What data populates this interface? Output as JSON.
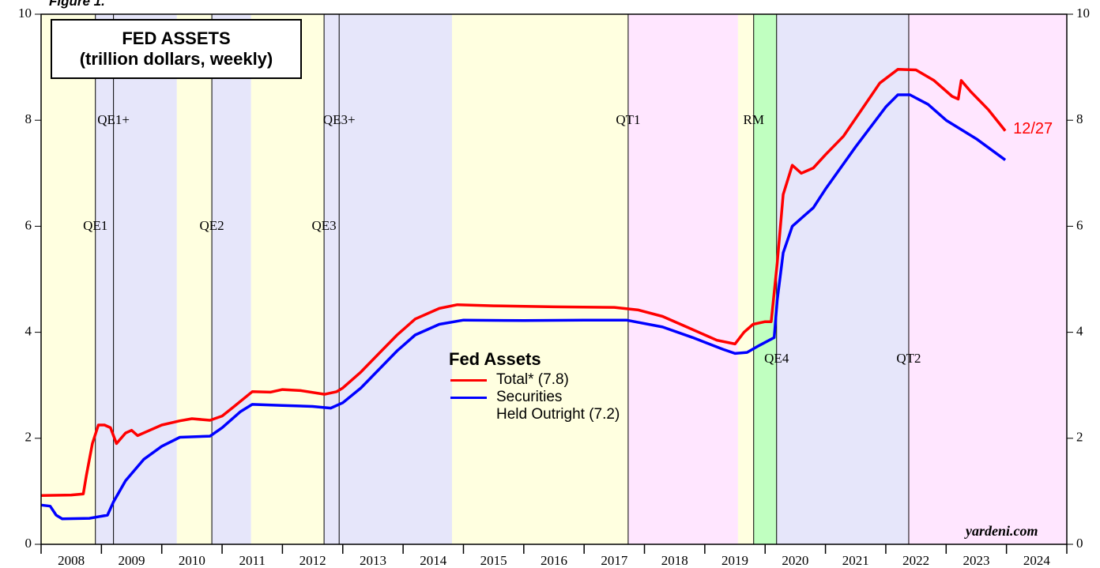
{
  "chart_data": {
    "type": "line",
    "figure_label": "Figure 1.",
    "title": "FED ASSETS\n(trillion dollars, weekly)",
    "legend_title": "Fed Assets",
    "source": "yardeni.com",
    "end_label": "12/27",
    "xlim": [
      2008,
      2025
    ],
    "xticks": [
      2008,
      2009,
      2010,
      2011,
      2012,
      2013,
      2014,
      2015,
      2016,
      2017,
      2018,
      2019,
      2020,
      2021,
      2022,
      2023,
      2024,
      2025
    ],
    "x_labels": [
      "2008",
      "2009",
      "2010",
      "2011",
      "2012",
      "2013",
      "2014",
      "2015",
      "2016",
      "2017",
      "2018",
      "2019",
      "2020",
      "2021",
      "2022",
      "2023",
      "2024"
    ],
    "ylim": [
      0,
      10
    ],
    "yticks": [
      0,
      2,
      4,
      6,
      8,
      10
    ],
    "bands": [
      {
        "from": 2008.0,
        "to": 2008.9,
        "color": "#ffffe0"
      },
      {
        "from": 2008.9,
        "to": 2010.25,
        "color": "#e6e6fa"
      },
      {
        "from": 2010.25,
        "to": 2010.83,
        "color": "#ffffe0"
      },
      {
        "from": 2010.83,
        "to": 2011.48,
        "color": "#e6e6fa"
      },
      {
        "from": 2011.48,
        "to": 2012.69,
        "color": "#ffffe0"
      },
      {
        "from": 2012.69,
        "to": 2014.81,
        "color": "#e6e6fa"
      },
      {
        "from": 2014.81,
        "to": 2017.73,
        "color": "#ffffe0"
      },
      {
        "from": 2017.73,
        "to": 2019.55,
        "color": "#ffe6ff"
      },
      {
        "from": 2019.55,
        "to": 2019.81,
        "color": "#ffffe0"
      },
      {
        "from": 2019.81,
        "to": 2020.19,
        "color": "#c0ffc0"
      },
      {
        "from": 2020.19,
        "to": 2022.37,
        "color": "#e6e6fa"
      },
      {
        "from": 2022.37,
        "to": 2025.0,
        "color": "#ffe6ff"
      }
    ],
    "events": [
      {
        "x": 2008.9,
        "label": "QE1"
      },
      {
        "x": 2009.2,
        "label": "QE1+"
      },
      {
        "x": 2010.83,
        "label": "QE2"
      },
      {
        "x": 2012.69,
        "label": "QE3"
      },
      {
        "x": 2012.94,
        "label": "QE3+"
      },
      {
        "x": 2017.73,
        "label": "QT1"
      },
      {
        "x": 2019.81,
        "label": "RM"
      },
      {
        "x": 2020.19,
        "label": "QE4"
      },
      {
        "x": 2022.38,
        "label": "QT2"
      }
    ],
    "series": [
      {
        "name": "Total* (7.8)",
        "color": "#ff0000",
        "x": [
          2008.0,
          2008.5,
          2008.7,
          2008.75,
          2008.85,
          2008.95,
          2009.05,
          2009.15,
          2009.25,
          2009.4,
          2009.5,
          2009.6,
          2009.8,
          2010.0,
          2010.3,
          2010.5,
          2010.8,
          2011.0,
          2011.2,
          2011.5,
          2011.8,
          2012.0,
          2012.3,
          2012.7,
          2012.9,
          2013.0,
          2013.3,
          2013.6,
          2013.9,
          2014.2,
          2014.6,
          2014.9,
          2015.5,
          2016.5,
          2017.5,
          2017.9,
          2018.3,
          2018.7,
          2019.2,
          2019.5,
          2019.65,
          2019.8,
          2020.0,
          2020.1,
          2020.2,
          2020.3,
          2020.45,
          2020.6,
          2020.8,
          2021.0,
          2021.3,
          2021.6,
          2021.9,
          2022.2,
          2022.5,
          2022.8,
          2023.1,
          2023.2,
          2023.25,
          2023.4,
          2023.7,
          2023.98
        ],
        "values": [
          0.92,
          0.93,
          0.95,
          1.3,
          1.9,
          2.25,
          2.25,
          2.2,
          1.9,
          2.1,
          2.15,
          2.05,
          2.15,
          2.25,
          2.33,
          2.37,
          2.34,
          2.42,
          2.6,
          2.88,
          2.87,
          2.92,
          2.9,
          2.83,
          2.88,
          2.95,
          3.25,
          3.6,
          3.95,
          4.25,
          4.45,
          4.52,
          4.5,
          4.48,
          4.47,
          4.42,
          4.3,
          4.1,
          3.85,
          3.78,
          4.0,
          4.15,
          4.2,
          4.2,
          5.3,
          6.6,
          7.15,
          7.0,
          7.1,
          7.35,
          7.7,
          8.2,
          8.7,
          8.96,
          8.95,
          8.75,
          8.45,
          8.4,
          8.75,
          8.55,
          8.2,
          7.8
        ]
      },
      {
        "name": "Securities\nHeld Outright (7.2)",
        "color": "#0000ff",
        "x": [
          2008.0,
          2008.15,
          2008.25,
          2008.35,
          2008.8,
          2009.1,
          2009.2,
          2009.4,
          2009.7,
          2010.0,
          2010.3,
          2010.8,
          2011.0,
          2011.3,
          2011.5,
          2012.0,
          2012.5,
          2012.8,
          2013.0,
          2013.3,
          2013.6,
          2013.9,
          2014.2,
          2014.6,
          2015.0,
          2016.0,
          2017.0,
          2017.7,
          2018.3,
          2018.8,
          2019.3,
          2019.5,
          2019.7,
          2019.9,
          2020.15,
          2020.2,
          2020.3,
          2020.45,
          2020.8,
          2021.0,
          2021.5,
          2022.0,
          2022.2,
          2022.4,
          2022.7,
          2023.0,
          2023.5,
          2023.98
        ],
        "values": [
          0.74,
          0.72,
          0.55,
          0.48,
          0.49,
          0.55,
          0.8,
          1.2,
          1.6,
          1.85,
          2.02,
          2.04,
          2.2,
          2.5,
          2.64,
          2.62,
          2.6,
          2.57,
          2.67,
          2.95,
          3.3,
          3.65,
          3.95,
          4.15,
          4.23,
          4.22,
          4.23,
          4.23,
          4.1,
          3.9,
          3.68,
          3.6,
          3.62,
          3.75,
          3.9,
          4.6,
          5.5,
          6.0,
          6.35,
          6.7,
          7.5,
          8.25,
          8.48,
          8.48,
          8.3,
          8.0,
          7.65,
          7.25
        ]
      }
    ]
  }
}
